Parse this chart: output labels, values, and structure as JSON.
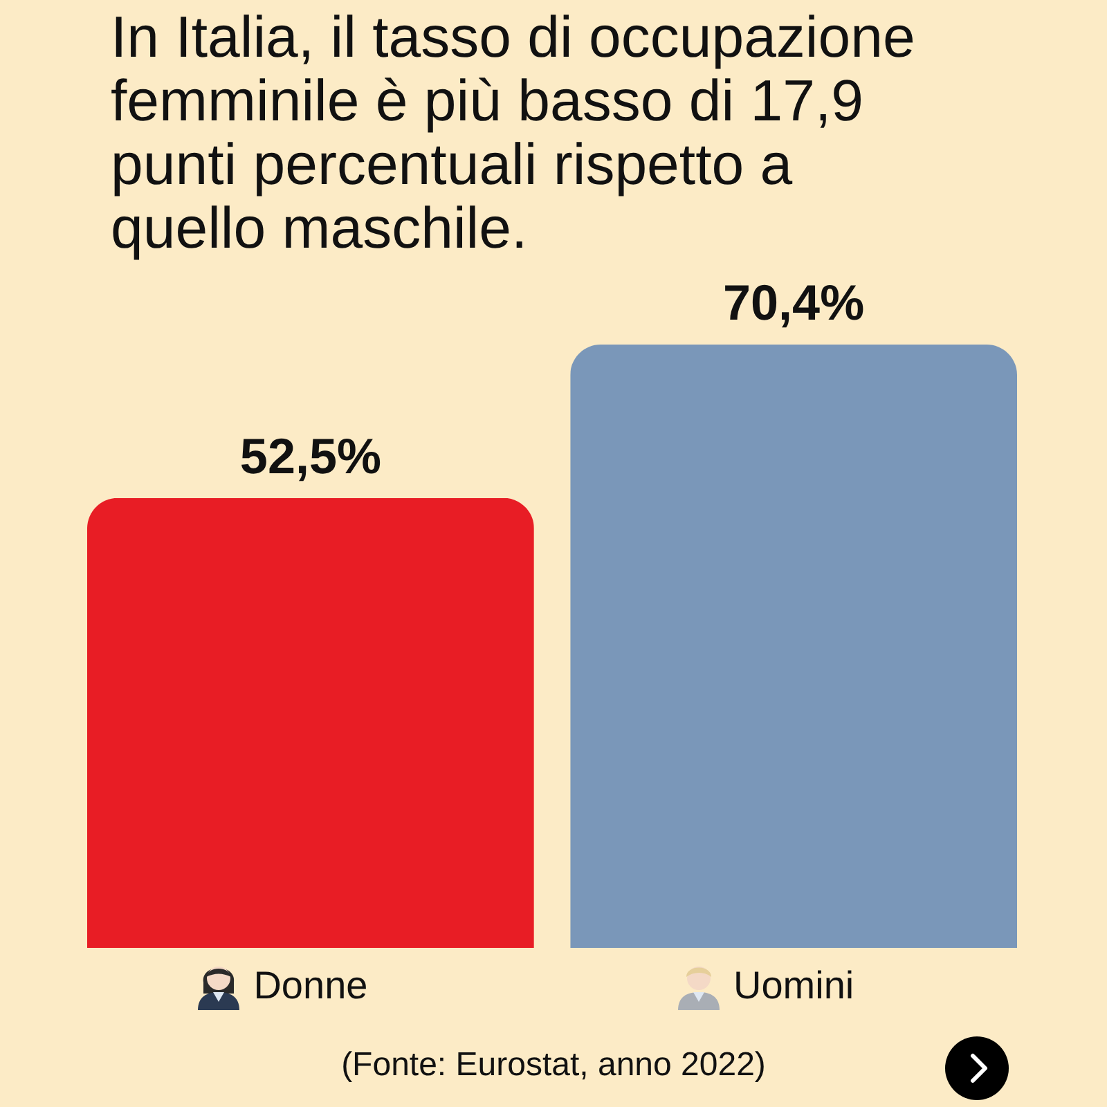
{
  "chart_data": {
    "type": "bar",
    "title": "In Italia, il tasso di occupazione femminile è più basso di 17,9 punti percentuali rispetto a quello maschile.",
    "categories": [
      "Donne",
      "Uomini"
    ],
    "values": [
      52.5,
      70.4
    ],
    "colors": [
      "#e81d25",
      "#7a97b9"
    ],
    "value_labels": [
      "52,5%",
      "70,4%"
    ],
    "annotations": [
      "(Fonte: Eurostat, anno 2022)"
    ]
  }
}
